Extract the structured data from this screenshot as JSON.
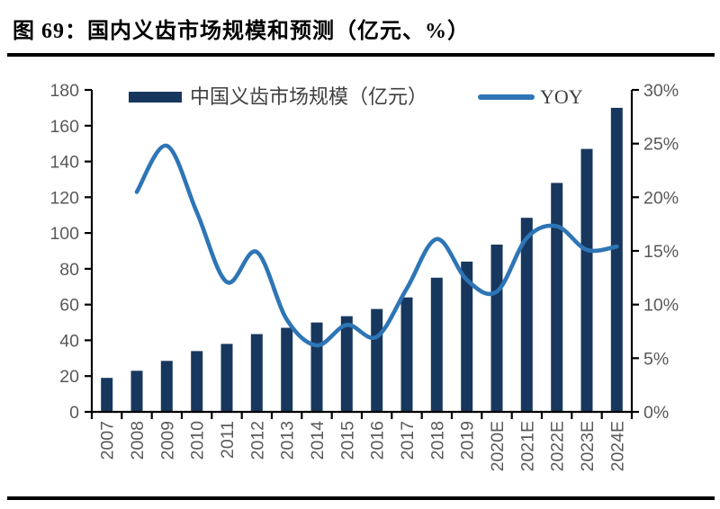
{
  "page": {
    "title": "图 69：国内义齿市场规模和预测（亿元、%）"
  },
  "chart_data": {
    "type": "combo-bar-line",
    "title": "图 69：国内义齿市场规模和预测（亿元、%）",
    "categories": [
      "2007",
      "2008",
      "2009",
      "2010",
      "2011",
      "2012",
      "2013",
      "2014",
      "2015",
      "2016",
      "2017",
      "2018",
      "2019",
      "2020E",
      "2021E",
      "2022E",
      "2023E",
      "2024E"
    ],
    "series": [
      {
        "name": "中国义齿市场规模（亿元）",
        "type": "bar",
        "axis": "left",
        "color": "#17375E",
        "values": [
          19,
          23,
          28.5,
          34,
          38,
          43.5,
          47,
          50,
          53.5,
          57.5,
          64,
          75,
          84,
          93.5,
          108.5,
          128,
          147,
          170
        ]
      },
      {
        "name": "YOY",
        "type": "line",
        "axis": "right",
        "color": "#2E75B6",
        "values": [
          null,
          20.5,
          24.8,
          18.6,
          12.1,
          14.9,
          8.6,
          6.2,
          8.1,
          7.0,
          11.5,
          16.1,
          12.3,
          11.2,
          16.2,
          17.3,
          15.1,
          15.4
        ]
      }
    ],
    "left_axis": {
      "min": 0,
      "max": 180,
      "step": 20,
      "tick_labels": [
        "0",
        "20",
        "40",
        "60",
        "80",
        "100",
        "120",
        "140",
        "160",
        "180"
      ]
    },
    "right_axis": {
      "min": 0,
      "max": 30,
      "step": 5,
      "tick_labels": [
        "0%",
        "5%",
        "10%",
        "15%",
        "20%",
        "25%",
        "30%"
      ]
    },
    "legend_position": "top",
    "grid": false,
    "styles": {
      "axis_color": "#000000",
      "tick_label_color": "#595959",
      "background": "#ffffff"
    }
  }
}
